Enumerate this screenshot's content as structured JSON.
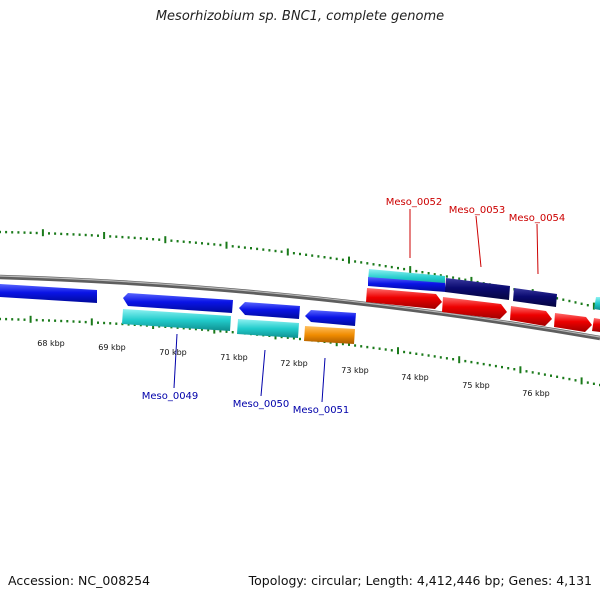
{
  "title": "Mesorhizobium sp. BNC1, complete genome",
  "footer": {
    "accession": "Accession: NC_008254",
    "topology": "Topology: circular; Length: 4,412,446 bp; Genes: 4,131"
  },
  "scale_labels": [
    "68 kbp",
    "69 kbp",
    "70 kbp",
    "71 kbp",
    "72 kbp",
    "73 kbp",
    "74 kbp",
    "75 kbp",
    "76 kbp"
  ],
  "gene_labels": {
    "forward": [
      "Meso_0052",
      "Meso_0053",
      "Meso_0054"
    ],
    "reverse": [
      "Meso_0049",
      "Meso_0050",
      "Meso_0051"
    ]
  },
  "colors": {
    "forward_label": "#cc0000",
    "reverse_label": "#0000aa",
    "tick": "#1a7a1a",
    "backbone": "#7a7a7a",
    "blue": "#0a14e6",
    "navy": "#0a0a70",
    "cyan": "#22cccc",
    "orange": "#f08c00",
    "red": "#ee0000"
  }
}
